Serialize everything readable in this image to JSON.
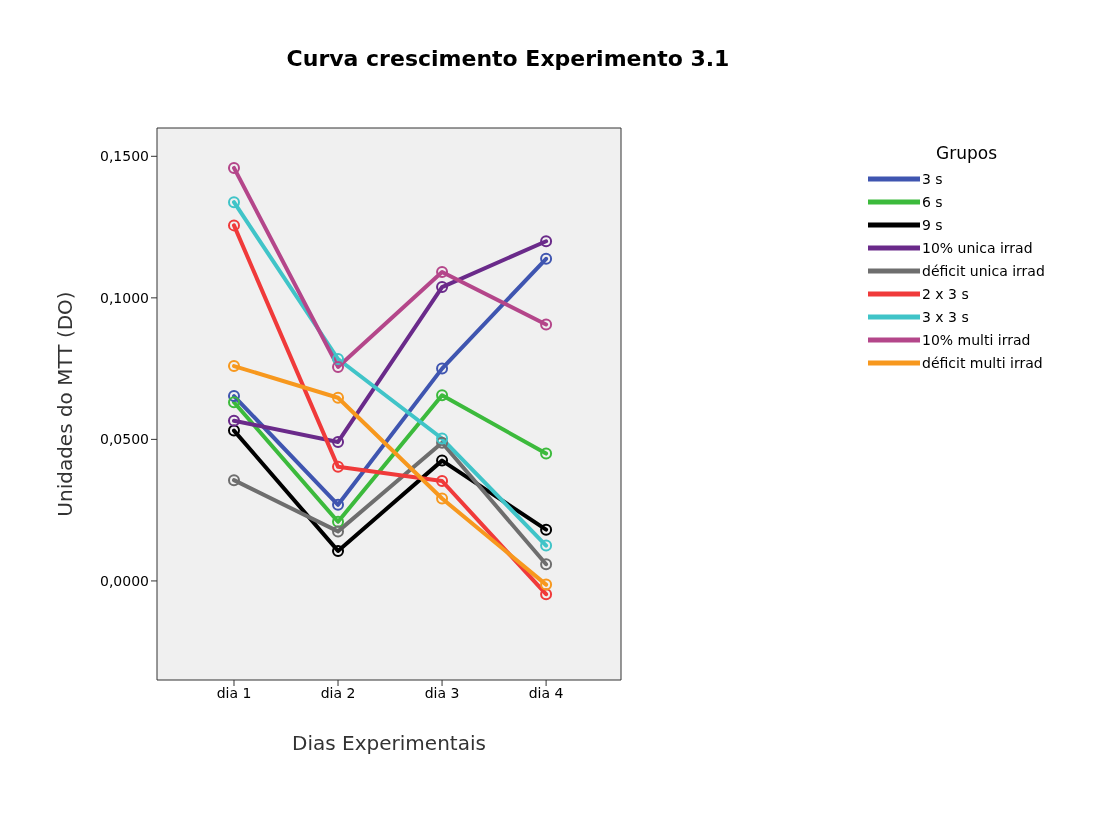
{
  "chart_data": {
    "type": "line",
    "title": "Curva crescimento Experimento 3.1",
    "xlabel": "Dias Experimentais",
    "ylabel": "Unidades do MTT (DO)",
    "legend_title": "Grupos",
    "legend": "right",
    "marker": "circle",
    "line_style": "solid",
    "grid": false,
    "categories": [
      "dia 1",
      "dia 2",
      "dia 3",
      "dia 4"
    ],
    "ylim": [
      -0.035,
      0.16
    ],
    "yticks": [
      {
        "value": 0,
        "label": "0,0000"
      },
      {
        "value": 0.05,
        "label": "0,0500"
      },
      {
        "value": 0.1,
        "label": "0,1000"
      },
      {
        "value": 0.15,
        "label": "0,1500"
      }
    ],
    "series": [
      {
        "name": "3 s",
        "color": "#3f55b0",
        "values": [
          0.0653,
          0.0269,
          0.075,
          0.1138
        ]
      },
      {
        "name": "6 s",
        "color": "#3cba3c",
        "values": [
          0.0631,
          0.0209,
          0.0656,
          0.045
        ]
      },
      {
        "name": "9 s",
        "color": "#000000",
        "values": [
          0.0531,
          0.0106,
          0.0425,
          0.0181
        ]
      },
      {
        "name": "10% unica irrad",
        "color": "#6a2a8a",
        "values": [
          0.0566,
          0.0491,
          0.1038,
          0.12
        ]
      },
      {
        "name": "déficit unica irrad",
        "color": "#6e6e6e",
        "values": [
          0.0356,
          0.0175,
          0.0488,
          0.0059
        ]
      },
      {
        "name": "2 x 3 s",
        "color": "#f03a3a",
        "values": [
          0.1256,
          0.0403,
          0.0353,
          -0.0047
        ]
      },
      {
        "name": "3 x 3 s",
        "color": "#40c4c8",
        "values": [
          0.1338,
          0.0784,
          0.0503,
          0.0125
        ]
      },
      {
        "name": "10% multi irrad",
        "color": "#b4468a",
        "values": [
          0.1459,
          0.0756,
          0.1091,
          0.0906
        ]
      },
      {
        "name": "déficit multi irrad",
        "color": "#f7981e",
        "values": [
          0.0759,
          0.0647,
          0.0291,
          -0.0013
        ]
      }
    ]
  }
}
